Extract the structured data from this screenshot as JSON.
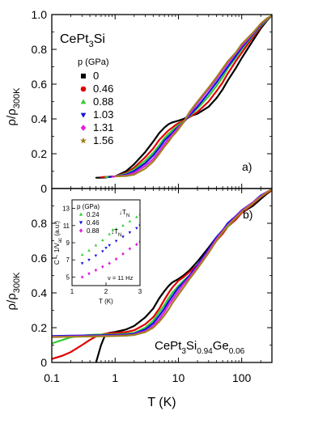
{
  "figure": {
    "xlabel": "T (K)",
    "x_tick_labels": [
      "0.1",
      "1",
      "10",
      "100"
    ]
  },
  "chart_data": [
    {
      "type": "line",
      "panel_label": "a)",
      "sample": {
        "base": "CePt",
        "sub1": "3",
        "rest": "Si"
      },
      "ylabel": {
        "main": "ρ/ρ",
        "sub": "300K"
      },
      "xscale": "log",
      "xlim": [
        0.1,
        300
      ],
      "ylim": [
        0,
        1.0
      ],
      "y_tick_labels": [
        "0",
        "0.2",
        "0.4",
        "0.6",
        "0.8",
        "1.0"
      ],
      "legend": {
        "title": "p (GPa)",
        "position": "upper-left"
      },
      "series": [
        {
          "name": "0",
          "color": "#000000",
          "marker": "square",
          "x": [
            0.5,
            0.7,
            1,
            1.5,
            2,
            3,
            4,
            5,
            6,
            7,
            8,
            9,
            10,
            12,
            15,
            20,
            30,
            40,
            50,
            60,
            80,
            100,
            150,
            200,
            250,
            300
          ],
          "y": [
            0.062,
            0.063,
            0.07,
            0.1,
            0.14,
            0.21,
            0.27,
            0.32,
            0.35,
            0.37,
            0.38,
            0.385,
            0.39,
            0.4,
            0.415,
            0.43,
            0.47,
            0.52,
            0.57,
            0.62,
            0.69,
            0.75,
            0.85,
            0.92,
            0.965,
            0.995
          ]
        },
        {
          "name": "0.46",
          "color": "#e00000",
          "marker": "circle",
          "x": [
            0.6,
            0.8,
            1,
            1.5,
            2,
            3,
            4,
            5,
            6,
            7,
            8,
            9,
            10,
            12,
            15,
            20,
            30,
            40,
            50,
            60,
            80,
            100,
            150,
            200,
            250,
            300
          ],
          "y": [
            0.065,
            0.068,
            0.07,
            0.09,
            0.12,
            0.18,
            0.23,
            0.28,
            0.31,
            0.335,
            0.35,
            0.365,
            0.375,
            0.39,
            0.41,
            0.44,
            0.5,
            0.56,
            0.61,
            0.66,
            0.73,
            0.78,
            0.87,
            0.93,
            0.97,
            0.995
          ]
        },
        {
          "name": "0.88",
          "color": "#33cc33",
          "marker": "triangle-up",
          "x": [
            0.7,
            0.9,
            1,
            1.5,
            2,
            3,
            4,
            5,
            6,
            7,
            8,
            9,
            10,
            12,
            15,
            20,
            30,
            40,
            50,
            60,
            80,
            100,
            150,
            200,
            250,
            300
          ],
          "y": [
            0.065,
            0.068,
            0.07,
            0.085,
            0.11,
            0.16,
            0.205,
            0.25,
            0.29,
            0.315,
            0.335,
            0.35,
            0.365,
            0.385,
            0.415,
            0.46,
            0.53,
            0.59,
            0.64,
            0.69,
            0.75,
            0.8,
            0.88,
            0.935,
            0.97,
            0.995
          ]
        },
        {
          "name": "1.03",
          "color": "#1010e0",
          "marker": "triangle-down",
          "x": [
            0.8,
            1,
            1.5,
            2,
            3,
            4,
            5,
            6,
            7,
            8,
            9,
            10,
            12,
            15,
            20,
            30,
            40,
            50,
            60,
            80,
            100,
            150,
            200,
            250,
            300
          ],
          "y": [
            0.066,
            0.07,
            0.08,
            0.1,
            0.145,
            0.19,
            0.235,
            0.275,
            0.3,
            0.32,
            0.34,
            0.355,
            0.38,
            0.42,
            0.47,
            0.55,
            0.61,
            0.66,
            0.7,
            0.76,
            0.81,
            0.885,
            0.94,
            0.975,
            0.995
          ]
        },
        {
          "name": "1.31",
          "color": "#e020e0",
          "marker": "diamond",
          "x": [
            0.9,
            1,
            1.5,
            2,
            3,
            4,
            5,
            6,
            7,
            8,
            9,
            10,
            12,
            15,
            20,
            30,
            40,
            50,
            60,
            80,
            100,
            150,
            200,
            250,
            300
          ],
          "y": [
            0.067,
            0.07,
            0.075,
            0.09,
            0.13,
            0.17,
            0.215,
            0.255,
            0.285,
            0.31,
            0.33,
            0.35,
            0.38,
            0.43,
            0.49,
            0.57,
            0.63,
            0.68,
            0.72,
            0.775,
            0.82,
            0.89,
            0.945,
            0.975,
            0.995
          ]
        },
        {
          "name": "1.56",
          "color": "#a08020",
          "marker": "star",
          "x": [
            1,
            1.5,
            2,
            3,
            4,
            5,
            6,
            7,
            8,
            9,
            10,
            12,
            15,
            20,
            30,
            40,
            50,
            60,
            80,
            100,
            150,
            200,
            250,
            300
          ],
          "y": [
            0.07,
            0.072,
            0.08,
            0.115,
            0.155,
            0.2,
            0.24,
            0.27,
            0.3,
            0.32,
            0.34,
            0.38,
            0.44,
            0.5,
            0.58,
            0.64,
            0.69,
            0.73,
            0.78,
            0.83,
            0.895,
            0.948,
            0.978,
            0.995
          ]
        }
      ]
    },
    {
      "type": "line",
      "panel_label": "b)",
      "sample": {
        "base": "CePt",
        "sub1": "3",
        "mid": "Si",
        "sub2": "0.94",
        "mid2": "Ge",
        "sub3": "0.06"
      },
      "ylabel": {
        "main": "ρ/ρ",
        "sub": "300K"
      },
      "xscale": "log",
      "xlim": [
        0.1,
        300
      ],
      "ylim": [
        0,
        1.0
      ],
      "y_tick_labels": [
        "0",
        "0.2",
        "0.4",
        "0.6",
        "0.8"
      ],
      "series": [
        {
          "color": "#000000",
          "x": [
            0.5,
            0.6,
            0.7,
            0.8,
            1,
            1.5,
            2,
            3,
            4,
            5,
            6,
            7,
            8,
            10,
            12,
            15,
            20,
            30,
            40,
            50,
            60,
            80,
            100,
            150,
            200,
            250,
            300
          ],
          "y": [
            0.0,
            0.1,
            0.16,
            0.17,
            0.175,
            0.19,
            0.21,
            0.26,
            0.31,
            0.37,
            0.41,
            0.44,
            0.46,
            0.48,
            0.5,
            0.53,
            0.58,
            0.66,
            0.72,
            0.76,
            0.79,
            0.83,
            0.86,
            0.9,
            0.94,
            0.97,
            0.99
          ]
        },
        {
          "color": "#e00000",
          "x": [
            0.1,
            0.15,
            0.2,
            0.3,
            0.4,
            0.5,
            0.6,
            0.7,
            0.8,
            1,
            1.5,
            2,
            3,
            4,
            5,
            6,
            7,
            8,
            10,
            12,
            15,
            20,
            30,
            40,
            50,
            60,
            80,
            100,
            150,
            200,
            250,
            300
          ],
          "y": [
            0.02,
            0.04,
            0.06,
            0.1,
            0.13,
            0.15,
            0.16,
            0.165,
            0.168,
            0.17,
            0.175,
            0.185,
            0.22,
            0.26,
            0.31,
            0.36,
            0.4,
            0.43,
            0.47,
            0.49,
            0.52,
            0.56,
            0.64,
            0.7,
            0.74,
            0.78,
            0.82,
            0.86,
            0.91,
            0.95,
            0.975,
            0.99
          ]
        },
        {
          "color": "#33cc33",
          "x": [
            0.1,
            0.15,
            0.2,
            0.25,
            0.3,
            0.4,
            0.5,
            0.7,
            1,
            1.5,
            2,
            3,
            4,
            5,
            6,
            7,
            8,
            10,
            12,
            15,
            20,
            30,
            40,
            50,
            60,
            80,
            100,
            150,
            200,
            250,
            300
          ],
          "y": [
            0.11,
            0.13,
            0.145,
            0.15,
            0.155,
            0.158,
            0.16,
            0.161,
            0.162,
            0.165,
            0.17,
            0.2,
            0.24,
            0.29,
            0.33,
            0.37,
            0.4,
            0.44,
            0.47,
            0.5,
            0.55,
            0.64,
            0.7,
            0.75,
            0.78,
            0.83,
            0.865,
            0.915,
            0.955,
            0.98,
            0.995
          ]
        },
        {
          "color": "#1010e0",
          "x": [
            0.1,
            0.2,
            0.5,
            1,
            1.5,
            2,
            3,
            4,
            5,
            6,
            7,
            8,
            10,
            12,
            15,
            20,
            30,
            40,
            50,
            60,
            80,
            100,
            150,
            200,
            250,
            300
          ],
          "y": [
            0.152,
            0.154,
            0.156,
            0.158,
            0.16,
            0.165,
            0.19,
            0.225,
            0.27,
            0.31,
            0.35,
            0.38,
            0.43,
            0.46,
            0.5,
            0.56,
            0.65,
            0.72,
            0.76,
            0.8,
            0.84,
            0.875,
            0.92,
            0.96,
            0.98,
            0.995
          ]
        },
        {
          "color": "#e020e0",
          "x": [
            0.1,
            0.2,
            0.5,
            1,
            1.5,
            2,
            3,
            4,
            5,
            6,
            7,
            8,
            10,
            12,
            15,
            20,
            30,
            40,
            50,
            60,
            80,
            100,
            150,
            200,
            250,
            300
          ],
          "y": [
            0.148,
            0.15,
            0.152,
            0.154,
            0.156,
            0.16,
            0.18,
            0.21,
            0.25,
            0.29,
            0.33,
            0.36,
            0.41,
            0.45,
            0.49,
            0.55,
            0.64,
            0.71,
            0.755,
            0.79,
            0.835,
            0.87,
            0.92,
            0.955,
            0.98,
            0.995
          ]
        },
        {
          "color": "#a08020",
          "x": [
            0.1,
            0.2,
            0.5,
            1,
            1.5,
            2,
            3,
            4,
            5,
            6,
            7,
            8,
            10,
            12,
            15,
            20,
            30,
            40,
            50,
            60,
            80,
            100,
            150,
            200,
            250,
            300
          ],
          "y": [
            0.146,
            0.148,
            0.15,
            0.152,
            0.154,
            0.158,
            0.175,
            0.2,
            0.235,
            0.27,
            0.305,
            0.34,
            0.39,
            0.43,
            0.48,
            0.54,
            0.63,
            0.7,
            0.75,
            0.785,
            0.83,
            0.865,
            0.915,
            0.952,
            0.978,
            0.995
          ]
        }
      ]
    },
    {
      "type": "scatter",
      "role": "inset",
      "ylabel": {
        "main": "C ~ 1/V",
        "sub": "ac",
        "unit": " (a.u.)"
      },
      "xlabel": "T (K)",
      "xlim": [
        1,
        3
      ],
      "ylim": [
        4,
        14
      ],
      "x_tick_labels": [
        "1",
        "2",
        "3"
      ],
      "y_tick_labels": [
        "5",
        "7",
        "9",
        "11",
        "13"
      ],
      "legend": {
        "title": "p (GPa)",
        "position": "upper-left"
      },
      "frequency_label": "ν = 11 Hz",
      "annotation": {
        "main": "T",
        "sub": "N"
      },
      "series": [
        {
          "name": "0.24",
          "color": "#33cc33",
          "marker": "triangle-up",
          "x": [
            1.3,
            1.5,
            1.7,
            1.9,
            2.1,
            2.2,
            2.3,
            2.5,
            2.7,
            2.9,
            3.0
          ],
          "y": [
            7.6,
            8.1,
            8.7,
            9.3,
            10.0,
            10.5,
            10.6,
            11.0,
            11.5,
            12.0,
            12.3
          ]
        },
        {
          "name": "0.46",
          "color": "#1010e0",
          "marker": "triangle-down",
          "x": [
            1.3,
            1.5,
            1.7,
            1.9,
            2.0,
            2.1,
            2.3,
            2.5,
            2.7,
            2.9,
            3.0
          ],
          "y": [
            6.6,
            7.0,
            7.5,
            8.0,
            8.4,
            8.7,
            9.2,
            9.7,
            10.2,
            10.7,
            11.0
          ]
        },
        {
          "name": "0.88",
          "color": "#e020e0",
          "marker": "diamond",
          "x": [
            1.3,
            1.5,
            1.7,
            1.9,
            2.1,
            2.3,
            2.5,
            2.7,
            2.9,
            3.0
          ],
          "y": [
            5.0,
            5.4,
            5.8,
            6.2,
            6.6,
            7.1,
            7.7,
            8.3,
            8.8,
            9.1
          ]
        }
      ]
    }
  ]
}
